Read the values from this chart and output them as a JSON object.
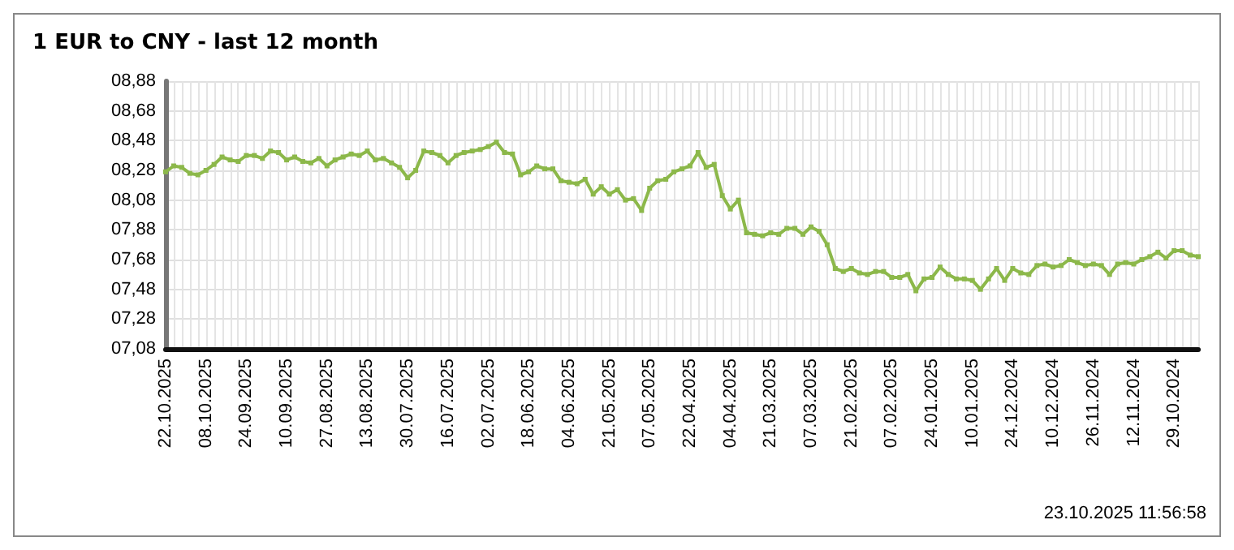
{
  "chart_data": {
    "type": "line",
    "title": "1 EUR to CNY - last 12 month",
    "annotations": [
      "23.10.2025 11:56:58"
    ],
    "categories": [
      "22.10.2025",
      null,
      null,
      null,
      null,
      "08.10.2025",
      null,
      null,
      null,
      null,
      "24.09.2025",
      null,
      null,
      null,
      null,
      "10.09.2025",
      null,
      null,
      null,
      null,
      "27.08.2025",
      null,
      null,
      null,
      null,
      "13.08.2025",
      null,
      null,
      null,
      null,
      "30.07.2025",
      null,
      null,
      null,
      null,
      "16.07.2025",
      null,
      null,
      null,
      null,
      "02.07.2025",
      null,
      null,
      null,
      null,
      "18.06.2025",
      null,
      null,
      null,
      null,
      "04.06.2025",
      null,
      null,
      null,
      null,
      "21.05.2025",
      null,
      null,
      null,
      null,
      "07.05.2025",
      null,
      null,
      null,
      null,
      "22.04.2025",
      null,
      null,
      null,
      null,
      "04.04.2025",
      null,
      null,
      null,
      null,
      "21.03.2025",
      null,
      null,
      null,
      null,
      "07.03.2025",
      null,
      null,
      null,
      null,
      "21.02.2025",
      null,
      null,
      null,
      null,
      "07.02.2025",
      null,
      null,
      null,
      null,
      "24.01.2025",
      null,
      null,
      null,
      null,
      "10.01.2025",
      null,
      null,
      null,
      null,
      "24.12.2024",
      null,
      null,
      null,
      null,
      "10.12.2024",
      null,
      null,
      null,
      null,
      "26.11.2024",
      null,
      null,
      null,
      null,
      "12.11.2024",
      null,
      null,
      null,
      null,
      "29.10.2024",
      null,
      null,
      null
    ],
    "series": [
      {
        "color": "#8cb84a",
        "values": [
          8.27,
          8.31,
          8.3,
          8.26,
          8.25,
          8.28,
          8.32,
          8.37,
          8.35,
          8.34,
          8.38,
          8.38,
          8.36,
          8.41,
          8.4,
          8.35,
          8.37,
          8.34,
          8.33,
          8.36,
          8.31,
          8.35,
          8.37,
          8.39,
          8.38,
          8.41,
          8.35,
          8.36,
          8.33,
          8.3,
          8.23,
          8.28,
          8.41,
          8.4,
          8.38,
          8.33,
          8.38,
          8.4,
          8.41,
          8.42,
          8.44,
          8.47,
          8.4,
          8.39,
          8.25,
          8.27,
          8.31,
          8.29,
          8.29,
          8.21,
          8.2,
          8.19,
          8.22,
          8.12,
          8.17,
          8.12,
          8.15,
          8.08,
          8.09,
          8.01,
          8.16,
          8.21,
          8.22,
          8.27,
          8.29,
          8.31,
          8.4,
          8.3,
          8.32,
          8.11,
          8.02,
          8.08,
          7.86,
          7.85,
          7.84,
          7.86,
          7.85,
          7.89,
          7.89,
          7.85,
          7.9,
          7.87,
          7.78,
          7.62,
          7.6,
          7.62,
          7.59,
          7.58,
          7.6,
          7.6,
          7.56,
          7.56,
          7.58,
          7.47,
          7.55,
          7.56,
          7.63,
          7.58,
          7.55,
          7.55,
          7.54,
          7.48,
          7.55,
          7.62,
          7.54,
          7.62,
          7.59,
          7.58,
          7.64,
          7.65,
          7.63,
          7.64,
          7.68,
          7.66,
          7.64,
          7.65,
          7.64,
          7.58,
          7.65,
          7.66,
          7.65,
          7.68,
          7.7,
          7.73,
          7.69,
          7.74,
          7.74,
          7.71,
          7.7
        ]
      }
    ],
    "ylim": [
      7.08,
      8.88
    ],
    "yticks": [
      {
        "value": 7.08,
        "label": "07,08"
      },
      {
        "value": 7.28,
        "label": "07,28"
      },
      {
        "value": 7.48,
        "label": "07,48"
      },
      {
        "value": 7.68,
        "label": "07,68"
      },
      {
        "value": 7.88,
        "label": "07,88"
      },
      {
        "value": 8.08,
        "label": "08,08"
      },
      {
        "value": 8.28,
        "label": "08,28"
      },
      {
        "value": 8.48,
        "label": "08,48"
      },
      {
        "value": 8.68,
        "label": "08,68"
      },
      {
        "value": 8.88,
        "label": "08,88"
      }
    ],
    "grid": true,
    "marker": "square",
    "line_style": "solid"
  }
}
